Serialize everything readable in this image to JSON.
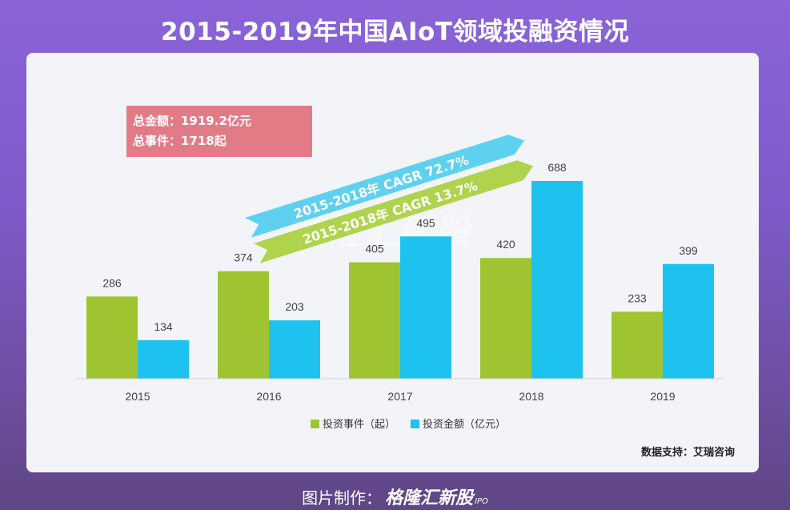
{
  "title": "2015-2019年中国AIoT领域投融资情况",
  "summary": {
    "total_amount": "总金额：1919.2亿元",
    "total_events": "总事件：1718起"
  },
  "arrows": {
    "blue": "2015-2018年 CAGR 72.7%",
    "green": "2015-2018年 CAGR 13.7%"
  },
  "watermark": "格隆汇新股",
  "source": "数据支持：艾瑞咨询",
  "footer": {
    "prefix": "图片制作：",
    "brand": "格隆汇新股",
    "ipo": "IPO"
  },
  "colors": {
    "green": "#9ec531",
    "blue": "#1dc2ef",
    "summary_bg": "#e27b86"
  },
  "chart_data": {
    "type": "bar",
    "categories": [
      "2015",
      "2016",
      "2017",
      "2018",
      "2019"
    ],
    "series": [
      {
        "name": "投资事件（起）",
        "values": [
          286,
          374,
          405,
          420,
          233
        ],
        "color": "#9ec531"
      },
      {
        "name": "投资金额（亿元）",
        "values": [
          134,
          203,
          495,
          688,
          399
        ],
        "color": "#1dc2ef"
      }
    ],
    "ylim": [
      0,
      700
    ]
  }
}
